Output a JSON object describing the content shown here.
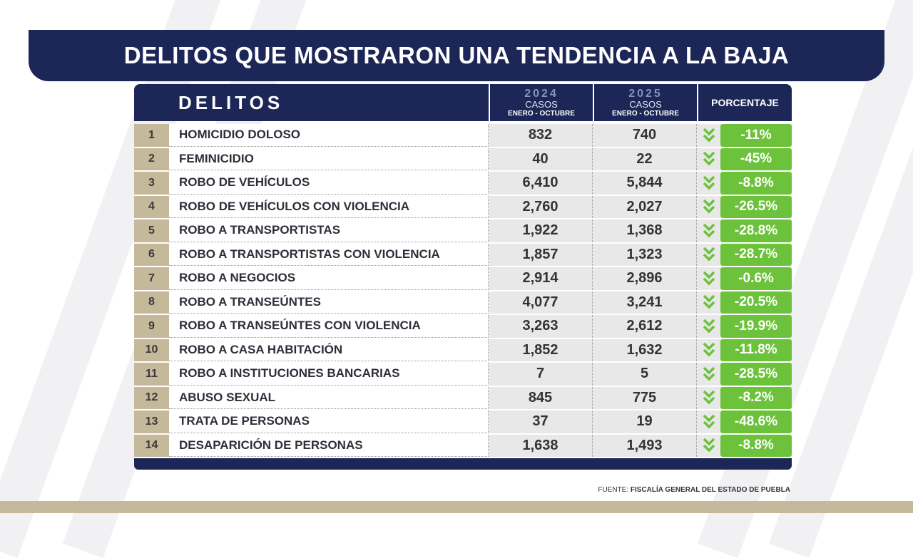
{
  "title": "DELITOS QUE MOSTRARON UNA TENDENCIA A LA BAJA",
  "header": {
    "delitos": "DELITOS",
    "year_2024": "2024",
    "year_2025": "2025",
    "casos": "CASOS",
    "periodo": "ENERO - OCTUBRE",
    "porcentaje": "PORCENTAJE"
  },
  "rows": [
    {
      "n": "1",
      "name": "HOMICIDIO DOLOSO",
      "v2024": "832",
      "v2025": "740",
      "pct": "-11%"
    },
    {
      "n": "2",
      "name": "FEMINICIDIO",
      "v2024": "40",
      "v2025": "22",
      "pct": "-45%"
    },
    {
      "n": "3",
      "name": "ROBO DE VEHÍCULOS",
      "v2024": "6,410",
      "v2025": "5,844",
      "pct": "-8.8%"
    },
    {
      "n": "4",
      "name": "ROBO DE VEHÍCULOS CON VIOLENCIA",
      "v2024": "2,760",
      "v2025": "2,027",
      "pct": "-26.5%"
    },
    {
      "n": "5",
      "name": "ROBO A TRANSPORTISTAS",
      "v2024": "1,922",
      "v2025": "1,368",
      "pct": "-28.8%"
    },
    {
      "n": "6",
      "name": "ROBO A TRANSPORTISTAS CON VIOLENCIA",
      "v2024": "1,857",
      "v2025": "1,323",
      "pct": "-28.7%"
    },
    {
      "n": "7",
      "name": "ROBO A NEGOCIOS",
      "v2024": "2,914",
      "v2025": "2,896",
      "pct": "-0.6%"
    },
    {
      "n": "8",
      "name": "ROBO A TRANSEÚNTES",
      "v2024": "4,077",
      "v2025": "3,241",
      "pct": "-20.5%"
    },
    {
      "n": "9",
      "name": "ROBO A TRANSEÚNTES CON VIOLENCIA",
      "v2024": "3,263",
      "v2025": "2,612",
      "pct": "-19.9%"
    },
    {
      "n": "10",
      "name": "ROBO A CASA HABITACIÓN",
      "v2024": "1,852",
      "v2025": "1,632",
      "pct": "-11.8%"
    },
    {
      "n": "11",
      "name": "ROBO A INSTITUCIONES BANCARIAS",
      "v2024": "7",
      "v2025": "5",
      "pct": "-28.5%"
    },
    {
      "n": "12",
      "name": "ABUSO SEXUAL",
      "v2024": "845",
      "v2025": "775",
      "pct": "-8.2%"
    },
    {
      "n": "13",
      "name": "TRATA DE PERSONAS",
      "v2024": "37",
      "v2025": "19",
      "pct": "-48.6%"
    },
    {
      "n": "14",
      "name": "DESAPARICIÓN DE PERSONAS",
      "v2024": "1,638",
      "v2025": "1,493",
      "pct": "-8.8%"
    }
  ],
  "source": {
    "label": "FUENTE:",
    "value": "FISCALÍA GENERAL DEL ESTADO DE PUEBLA"
  },
  "icons": {
    "trend": "double-chevron-down-icon"
  },
  "colors": {
    "navy": "#1c2757",
    "green": "#6cc23a",
    "tan": "#c4b99a"
  }
}
